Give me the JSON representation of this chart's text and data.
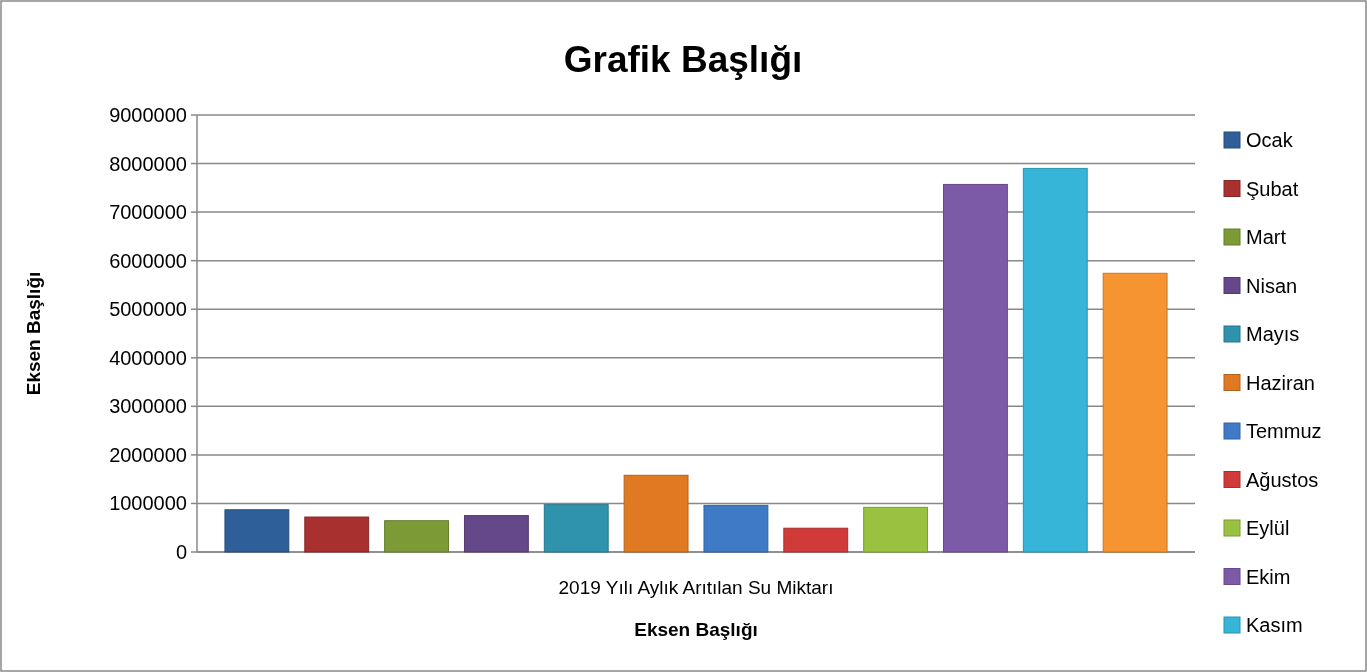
{
  "chart_data": {
    "type": "bar",
    "title": "Grafik Başlığı",
    "xlabel": "Eksen Başlığı",
    "ylabel": "Eksen Başlığı",
    "categories": [
      "2019 Yılı Aylık Arıtılan Su Miktarı"
    ],
    "ylim": [
      0,
      9000000
    ],
    "yticks": [
      0,
      1000000,
      2000000,
      3000000,
      4000000,
      5000000,
      6000000,
      7000000,
      8000000,
      9000000
    ],
    "grid": "y",
    "legend": "right",
    "series": [
      {
        "name": "Ocak",
        "color": "#2f5f98",
        "values": [
          870000
        ]
      },
      {
        "name": "Şubat",
        "color": "#a8302e",
        "values": [
          720000
        ]
      },
      {
        "name": "Mart",
        "color": "#7c9a36",
        "values": [
          645000
        ]
      },
      {
        "name": "Nisan",
        "color": "#65488a",
        "values": [
          750000
        ]
      },
      {
        "name": "Mayıs",
        "color": "#2f93ad",
        "values": [
          975000
        ]
      },
      {
        "name": "Haziran",
        "color": "#e07a22",
        "values": [
          1580000
        ]
      },
      {
        "name": "Temmuz",
        "color": "#3e7ac6",
        "values": [
          960000
        ]
      },
      {
        "name": "Ağustos",
        "color": "#d03a38",
        "values": [
          490000
        ]
      },
      {
        "name": "Eylül",
        "color": "#9ac240",
        "values": [
          920000
        ]
      },
      {
        "name": "Ekim",
        "color": "#7d5aa8",
        "values": [
          7570000
        ]
      },
      {
        "name": "Kasım",
        "color": "#36b5d8",
        "values": [
          7900000
        ]
      },
      {
        "color": "#f59430",
        "values": [
          5740000
        ]
      }
    ]
  }
}
